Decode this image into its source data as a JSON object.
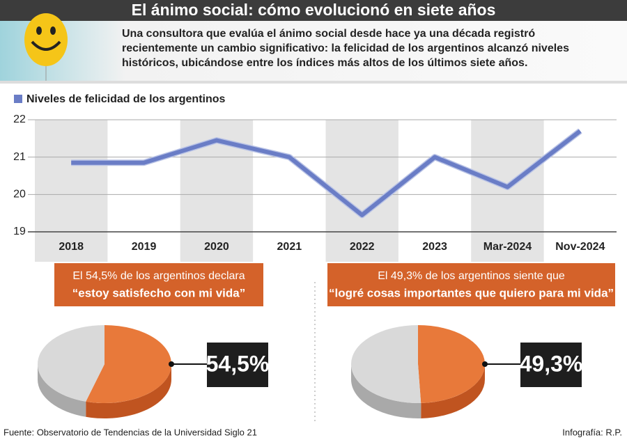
{
  "header": {
    "title": "El ánimo social: cómo evolucionó en siete años",
    "text": "Una consultora que evalúa el ánimo social desde hace ya una década registró recientemente un cambio significativo: la felicidad de los argentinos alcanzó niveles históricos, ubicándose entre los índices más altos de los últimos siete años."
  },
  "chart_data": [
    {
      "type": "line",
      "categories": [
        "2018",
        "2019",
        "2020",
        "2021",
        "2022",
        "2023",
        "Mar-2024",
        "Nov-2024"
      ],
      "series": [
        {
          "name": "Niveles de felicidad de los argentinos",
          "color": "#6a7dc6",
          "values": [
            20.85,
            20.85,
            21.45,
            21.0,
            19.45,
            21.0,
            20.2,
            21.7
          ]
        }
      ],
      "ylim": [
        19,
        22
      ],
      "yticks": [
        19,
        20,
        21,
        22
      ],
      "grid": true
    },
    {
      "type": "pie",
      "title": "El 54,5% de los argentinos declara",
      "subtitle": "“estoy satisfecho con mi vida”",
      "values": [
        54.5,
        45.5
      ],
      "value_labels": [
        "54,5%",
        null
      ],
      "colors": [
        "#e8793a",
        "#d9d9d9"
      ]
    },
    {
      "type": "pie",
      "title": "El 49,3% de los argentinos siente que",
      "subtitle": "“logré cosas importantes que quiero para mi vida”",
      "values": [
        49.3,
        50.7
      ],
      "value_labels": [
        "49,3%",
        null
      ],
      "colors": [
        "#e8793a",
        "#d9d9d9"
      ]
    }
  ],
  "footer": {
    "source": "Fuente: Observatorio de Tendencias de la Universidad Siglo 21",
    "credit": "Infografía: R.P."
  }
}
